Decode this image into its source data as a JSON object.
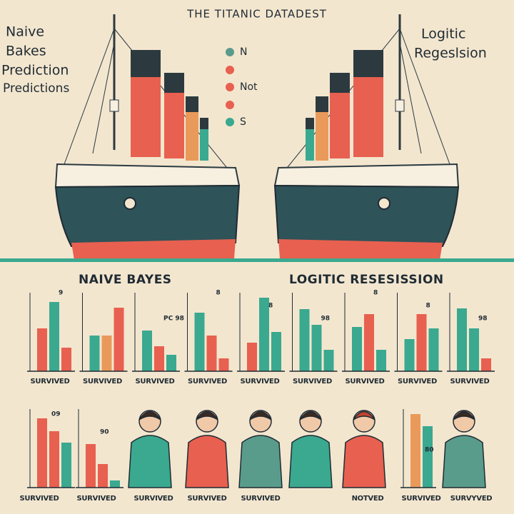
{
  "header": {
    "title": "THE TITANIC DATADEST"
  },
  "left_label": {
    "lines": [
      "Naive",
      "Bakes",
      "Prediction",
      "Predictions"
    ]
  },
  "right_label": {
    "lines": [
      "Logitic",
      "Regeslsion"
    ]
  },
  "legend": [
    {
      "label": "N",
      "color": "#5a9c8c"
    },
    {
      "label": "Not",
      "color": "#e8604f"
    },
    {
      "label": "S",
      "color": "#3aa98f"
    }
  ],
  "sections": {
    "left": "NAIVE BAYES",
    "right": "LOGITIC RESESISSION"
  },
  "row1": [
    {
      "label": "SURVIVED",
      "note": "9",
      "bars": [
        {
          "value": 60,
          "color": "#e8604f"
        },
        {
          "value": 97,
          "color": "#3aa98f"
        },
        {
          "value": 33,
          "color": "#e8604f"
        }
      ]
    },
    {
      "label": "SURVIVED",
      "bars": [
        {
          "value": 50,
          "color": "#3aa98f"
        },
        {
          "value": 50,
          "color": "#e99a5a"
        },
        {
          "value": 89,
          "color": "#e8604f"
        }
      ]
    },
    {
      "label": "SURVIVED",
      "note": "PC 98",
      "bars": [
        {
          "value": 57,
          "color": "#3aa98f"
        },
        {
          "value": 35,
          "color": "#e8604f"
        },
        {
          "value": 23,
          "color": "#3aa98f"
        }
      ]
    },
    {
      "label": "SURVIVED",
      "note": "8",
      "bars": [
        {
          "value": 82,
          "color": "#3aa98f"
        },
        {
          "value": 50,
          "color": "#e8604f"
        },
        {
          "value": 18,
          "color": "#e8604f"
        }
      ]
    },
    {
      "label": "SURVIVED",
      "note": "8",
      "bars": [
        {
          "value": 40,
          "color": "#e8604f"
        },
        {
          "value": 103,
          "color": "#3aa98f"
        },
        {
          "value": 55,
          "color": "#3aa98f"
        }
      ]
    },
    {
      "label": "SURVIVED",
      "note": "98",
      "bars": [
        {
          "value": 87,
          "color": "#3aa98f"
        },
        {
          "value": 65,
          "color": "#3aa98f"
        },
        {
          "value": 30,
          "color": "#3aa98f"
        }
      ]
    },
    {
      "label": "SURVIVED",
      "note": "8",
      "bars": [
        {
          "value": 62,
          "color": "#3aa98f"
        },
        {
          "value": 80,
          "color": "#e8604f"
        },
        {
          "value": 30,
          "color": "#3aa98f"
        }
      ]
    },
    {
      "label": "SURVIVED",
      "note": "8",
      "bars": [
        {
          "value": 45,
          "color": "#3aa98f"
        },
        {
          "value": 80,
          "color": "#e8604f"
        },
        {
          "value": 60,
          "color": "#3aa98f"
        }
      ]
    },
    {
      "label": "SURVIVED",
      "note": "98",
      "bars": [
        {
          "value": 88,
          "color": "#3aa98f"
        },
        {
          "value": 60,
          "color": "#3aa98f"
        },
        {
          "value": 18,
          "color": "#e8604f"
        }
      ]
    }
  ],
  "row2": {
    "charts": [
      {
        "note": "09",
        "bars": [
          {
            "value": 97,
            "color": "#e8604f"
          },
          {
            "value": 79,
            "color": "#e8604f"
          },
          {
            "value": 63,
            "color": "#3aa98f"
          }
        ]
      },
      {
        "note": "90",
        "bars": [
          {
            "value": 61,
            "color": "#e8604f"
          },
          {
            "value": 33,
            "color": "#e8604f"
          },
          {
            "value": 10,
            "color": "#3aa98f"
          }
        ]
      },
      {
        "note": "80",
        "bars": [
          {
            "value": 103,
            "color": "#e99a5a"
          },
          {
            "value": 86,
            "color": "#3aa98f"
          }
        ]
      }
    ],
    "labels": [
      "SURVIVED",
      "SURVIVED",
      "SURVIVED",
      "SURVIVED",
      "SURVIVED",
      "NOTVED",
      "SURVIVED",
      "SURVYVED"
    ]
  }
}
